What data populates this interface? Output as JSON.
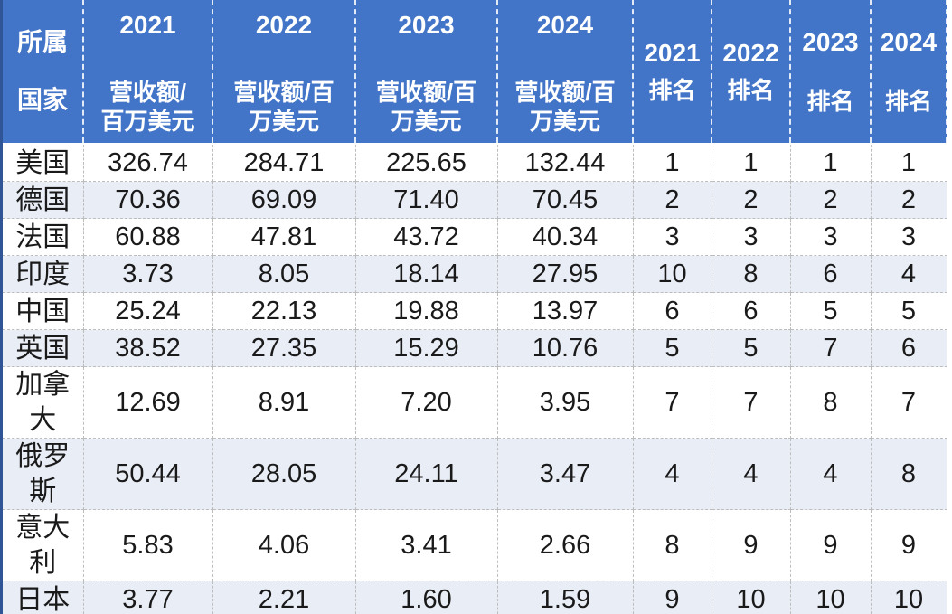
{
  "colors": {
    "header_bg": "#4274C8",
    "header_text": "#FFFFFF",
    "row_bg": "#FFFFFF",
    "row_alt_bg": "#E9EDF6",
    "grid_line": "#BDBDBD",
    "header_divider": "#E6EDF8",
    "left_border": "#2F5597",
    "body_text": "#1A1A1A"
  },
  "header": {
    "country": {
      "line1": "所属",
      "line2": "国家"
    },
    "revenue_cols": [
      {
        "year": "2021",
        "unit_line1": "营收额/",
        "unit_line2": "百万美元"
      },
      {
        "year": "2022",
        "unit_line1": "营收额/百",
        "unit_line2": "万美元"
      },
      {
        "year": "2023",
        "unit_line1": "营收额/百",
        "unit_line2": "万美元"
      },
      {
        "year": "2024",
        "unit_line1": "营收额/百",
        "unit_line2": "万美元"
      }
    ],
    "rank_cols": [
      {
        "year": "2021",
        "label": "排名"
      },
      {
        "year": "2022",
        "label": "排名"
      },
      {
        "year": "2023",
        "label": "排名"
      },
      {
        "year": "2024",
        "label": "排名"
      }
    ]
  },
  "rows": [
    {
      "country": "美国",
      "revenue": [
        "326.74",
        "284.71",
        "225.65",
        "132.44"
      ],
      "ranks": [
        "1",
        "1",
        "1",
        "1"
      ]
    },
    {
      "country": "德国",
      "revenue": [
        "70.36",
        "69.09",
        "71.40",
        "70.45"
      ],
      "ranks": [
        "2",
        "2",
        "2",
        "2"
      ]
    },
    {
      "country": "法国",
      "revenue": [
        "60.88",
        "47.81",
        "43.72",
        "40.34"
      ],
      "ranks": [
        "3",
        "3",
        "3",
        "3"
      ]
    },
    {
      "country": "印度",
      "revenue": [
        "3.73",
        "8.05",
        "18.14",
        "27.95"
      ],
      "ranks": [
        "10",
        "8",
        "6",
        "4"
      ]
    },
    {
      "country": "中国",
      "revenue": [
        "25.24",
        "22.13",
        "19.88",
        "13.97"
      ],
      "ranks": [
        "6",
        "6",
        "5",
        "5"
      ]
    },
    {
      "country": "英国",
      "revenue": [
        "38.52",
        "27.35",
        "15.29",
        "10.76"
      ],
      "ranks": [
        "5",
        "5",
        "7",
        "6"
      ]
    },
    {
      "country": "加拿大",
      "revenue": [
        "12.69",
        "8.91",
        "7.20",
        "3.95"
      ],
      "ranks": [
        "7",
        "7",
        "8",
        "7"
      ]
    },
    {
      "country": "俄罗斯",
      "revenue": [
        "50.44",
        "28.05",
        "24.11",
        "3.47"
      ],
      "ranks": [
        "4",
        "4",
        "4",
        "8"
      ]
    },
    {
      "country": "意大利",
      "revenue": [
        "5.83",
        "4.06",
        "3.41",
        "2.66"
      ],
      "ranks": [
        "8",
        "9",
        "9",
        "9"
      ]
    },
    {
      "country": "日本",
      "revenue": [
        "3.77",
        "2.21",
        "1.60",
        "1.59"
      ],
      "ranks": [
        "9",
        "10",
        "10",
        "10"
      ]
    }
  ],
  "chart_data": {
    "type": "table",
    "title": "各国营收额与排名 (2021-2024)",
    "columns": [
      "所属国家",
      "2021 营收额/百万美元",
      "2022 营收额/百万美元",
      "2023 营收额/百万美元",
      "2024 营收额/百万美元",
      "2021 排名",
      "2022 排名",
      "2023 排名",
      "2024 排名"
    ],
    "rows": [
      [
        "美国",
        326.74,
        284.71,
        225.65,
        132.44,
        1,
        1,
        1,
        1
      ],
      [
        "德国",
        70.36,
        69.09,
        71.4,
        70.45,
        2,
        2,
        2,
        2
      ],
      [
        "法国",
        60.88,
        47.81,
        43.72,
        40.34,
        3,
        3,
        3,
        3
      ],
      [
        "印度",
        3.73,
        8.05,
        18.14,
        27.95,
        10,
        8,
        6,
        4
      ],
      [
        "中国",
        25.24,
        22.13,
        19.88,
        13.97,
        6,
        6,
        5,
        5
      ],
      [
        "英国",
        38.52,
        27.35,
        15.29,
        10.76,
        5,
        5,
        7,
        6
      ],
      [
        "加拿大",
        12.69,
        8.91,
        7.2,
        3.95,
        7,
        7,
        8,
        7
      ],
      [
        "俄罗斯",
        50.44,
        28.05,
        24.11,
        3.47,
        4,
        4,
        4,
        8
      ],
      [
        "意大利",
        5.83,
        4.06,
        3.41,
        2.66,
        8,
        9,
        9,
        9
      ],
      [
        "日本",
        3.77,
        2.21,
        1.6,
        1.59,
        9,
        10,
        10,
        10
      ]
    ]
  }
}
